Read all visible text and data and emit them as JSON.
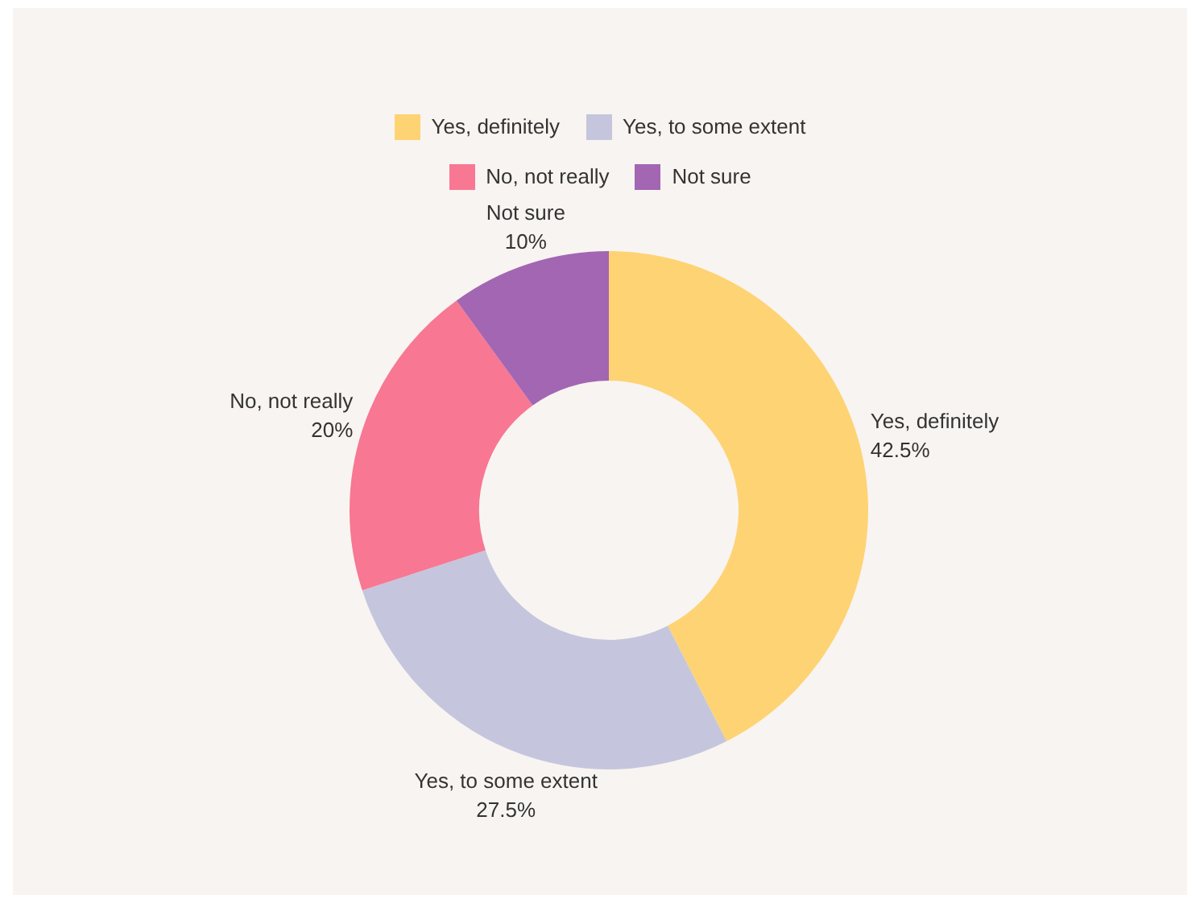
{
  "chart_data": {
    "type": "donut",
    "categories": [
      "Yes, definitely",
      "Yes, to some extent",
      "No, not really",
      "Not sure"
    ],
    "values": [
      42.5,
      27.5,
      20,
      10
    ],
    "colors": [
      "#fed374",
      "#c5c6dd",
      "#f87792",
      "#a366b3"
    ],
    "legend": "top",
    "value_labels": [
      "42.5%",
      "27.5%",
      "20%",
      "10%"
    ]
  }
}
